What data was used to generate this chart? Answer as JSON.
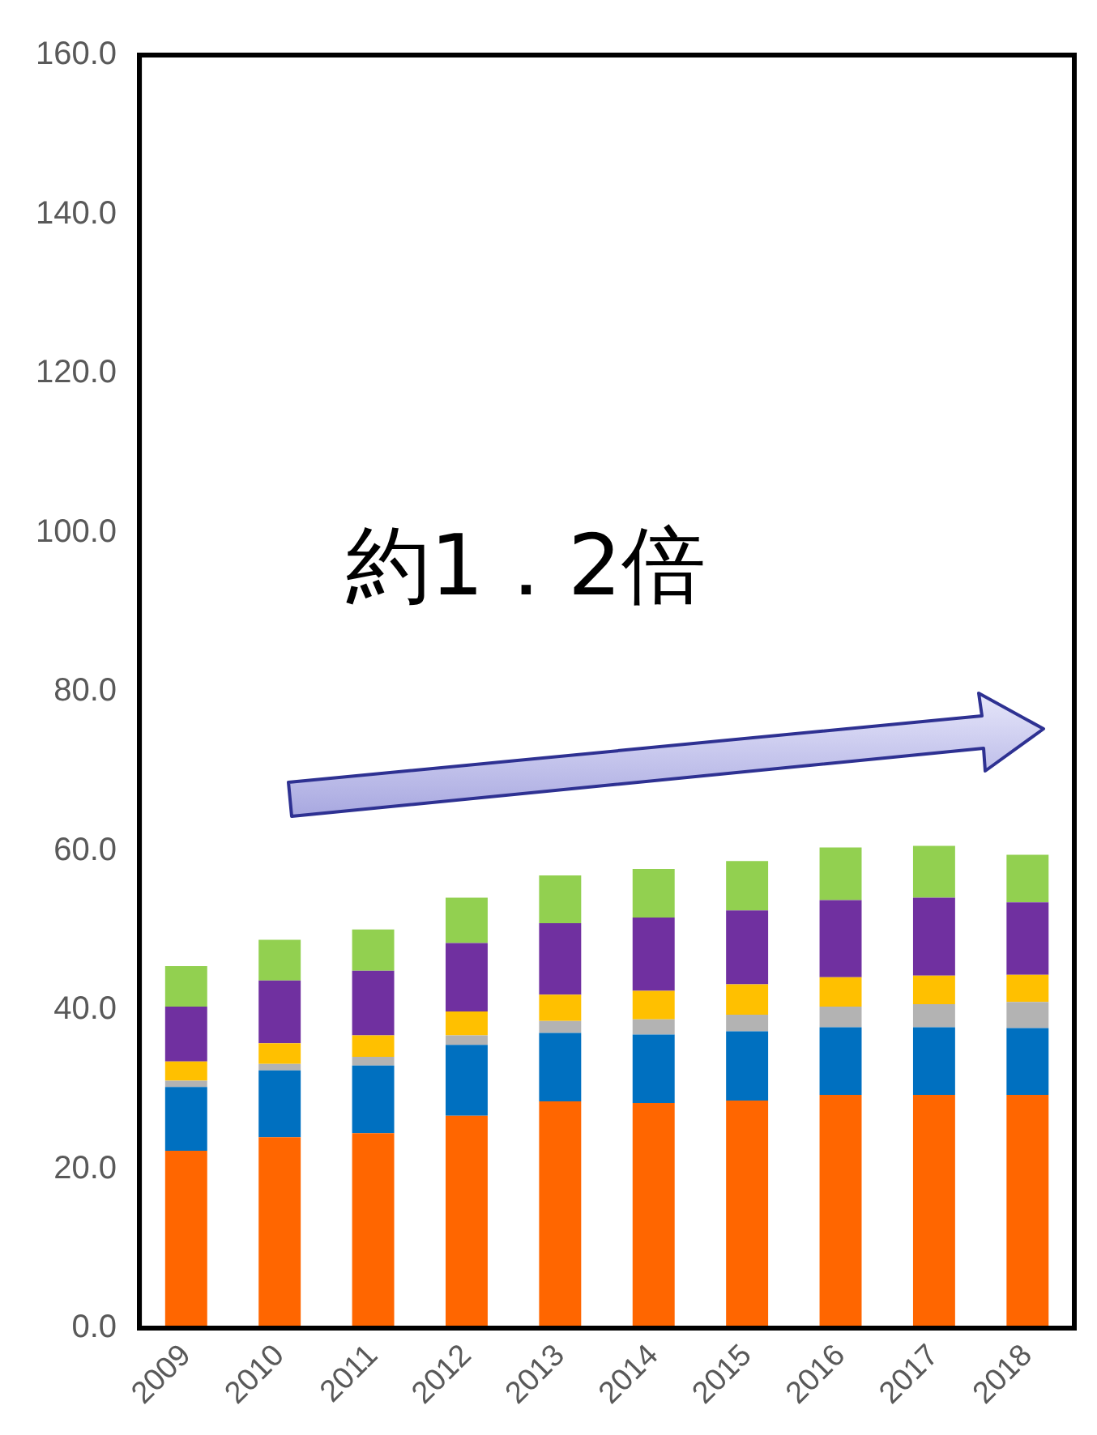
{
  "chart_data": {
    "type": "bar",
    "stacked": true,
    "categories": [
      "2009",
      "2010",
      "2011",
      "2012",
      "2013",
      "2014",
      "2015",
      "2016",
      "2017",
      "2018"
    ],
    "series": [
      {
        "color": "#ff6600",
        "values": [
          22.3,
          24.0,
          24.5,
          26.7,
          28.5,
          28.3,
          28.6,
          29.3,
          29.3,
          29.3
        ]
      },
      {
        "color": "#0070c0",
        "values": [
          8.0,
          8.4,
          8.5,
          8.9,
          8.6,
          8.6,
          8.7,
          8.5,
          8.5,
          8.4
        ]
      },
      {
        "color": "#b3b3b3",
        "values": [
          0.8,
          0.8,
          1.1,
          1.2,
          1.5,
          1.9,
          2.1,
          2.6,
          2.9,
          3.3
        ]
      },
      {
        "color": "#ffc000",
        "values": [
          2.4,
          2.6,
          2.7,
          3.0,
          3.3,
          3.6,
          3.8,
          3.7,
          3.6,
          3.4
        ]
      },
      {
        "color": "#7030a0",
        "values": [
          6.9,
          7.9,
          8.1,
          8.6,
          9.0,
          9.2,
          9.3,
          9.7,
          9.8,
          9.1
        ]
      },
      {
        "color": "#92d050",
        "values": [
          5.1,
          5.1,
          5.2,
          5.7,
          6.0,
          6.1,
          6.2,
          6.6,
          6.5,
          6.0
        ]
      }
    ],
    "ylim": [
      0,
      160
    ],
    "yticks": [
      {
        "value": 0,
        "label": "0.0"
      },
      {
        "value": 20,
        "label": "20.0"
      },
      {
        "value": 40,
        "label": "40.0"
      },
      {
        "value": 60,
        "label": "60.0"
      },
      {
        "value": 80,
        "label": "80.0"
      },
      {
        "value": 100,
        "label": "100.0"
      },
      {
        "value": 120,
        "label": "120.0"
      },
      {
        "value": 140,
        "label": "140.0"
      },
      {
        "value": 160,
        "label": "160.0"
      }
    ],
    "annotations": [
      "約1．2倍"
    ],
    "grid": false,
    "legend": false
  }
}
